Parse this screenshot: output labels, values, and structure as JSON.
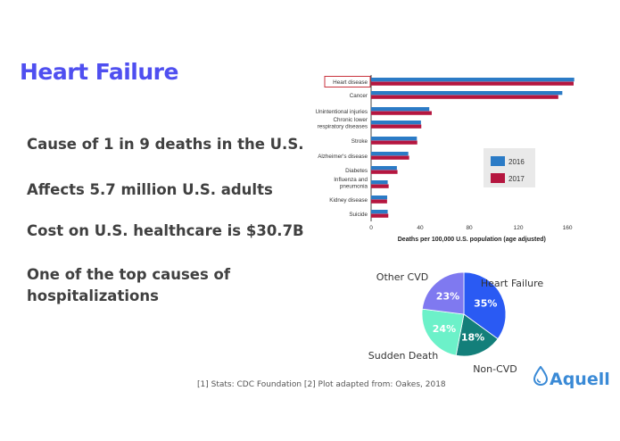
{
  "title": "Heart Failure",
  "bullets": [
    "Cause of 1 in 9 deaths in the U.S.",
    "Affects 5.7 million U.S. adults",
    "Cost on U.S. healthcare is $30.7B",
    "One of the top causes of hospitalizations"
  ],
  "footnote": "[1]  Stats: CDC Foundation [2] Plot adapted from: Oakes, 2018",
  "logo": {
    "text": "Aquell",
    "icon": "water-drop-icon"
  },
  "chart_data": [
    {
      "type": "bar",
      "orientation": "horizontal",
      "categories": [
        "Heart disease",
        "Cancer",
        "Unintentional injuries",
        "Chronic lower respiratory diseases",
        "Stroke",
        "Alzheimer's disease",
        "Diabetes",
        "Influenza and pneumonia",
        "Kidney disease",
        "Suicide"
      ],
      "series": [
        {
          "name": "2016",
          "color": "#2b7bc6",
          "values": [
            165.5,
            155.8,
            47.4,
            40.6,
            37.3,
            30.3,
            21.0,
            13.5,
            13.1,
            13.5
          ]
        },
        {
          "name": "2017",
          "color": "#b5163f",
          "values": [
            165.0,
            152.5,
            49.4,
            40.9,
            37.6,
            31.0,
            21.5,
            14.3,
            13.0,
            14.0
          ]
        }
      ],
      "highlight_category": "Heart disease",
      "xlabel": "Deaths per 100,000 U.S. population (age adjusted)",
      "xlim": [
        0,
        165
      ],
      "xticks": [
        0,
        40,
        80,
        120,
        160
      ],
      "legend_position": "right"
    },
    {
      "type": "pie",
      "slices": [
        {
          "label": "Heart Failure",
          "value": 35,
          "text": "35%",
          "color": "#2a5af3"
        },
        {
          "label": "Non-CVD",
          "value": 18,
          "text": "18%",
          "color": "#137f7a"
        },
        {
          "label": "Sudden Death",
          "value": 24,
          "text": "24%",
          "color": "#6cf1c9"
        },
        {
          "label": "Other CVD",
          "value": 23,
          "text": "23%",
          "color": "#7f79f0"
        }
      ]
    }
  ]
}
